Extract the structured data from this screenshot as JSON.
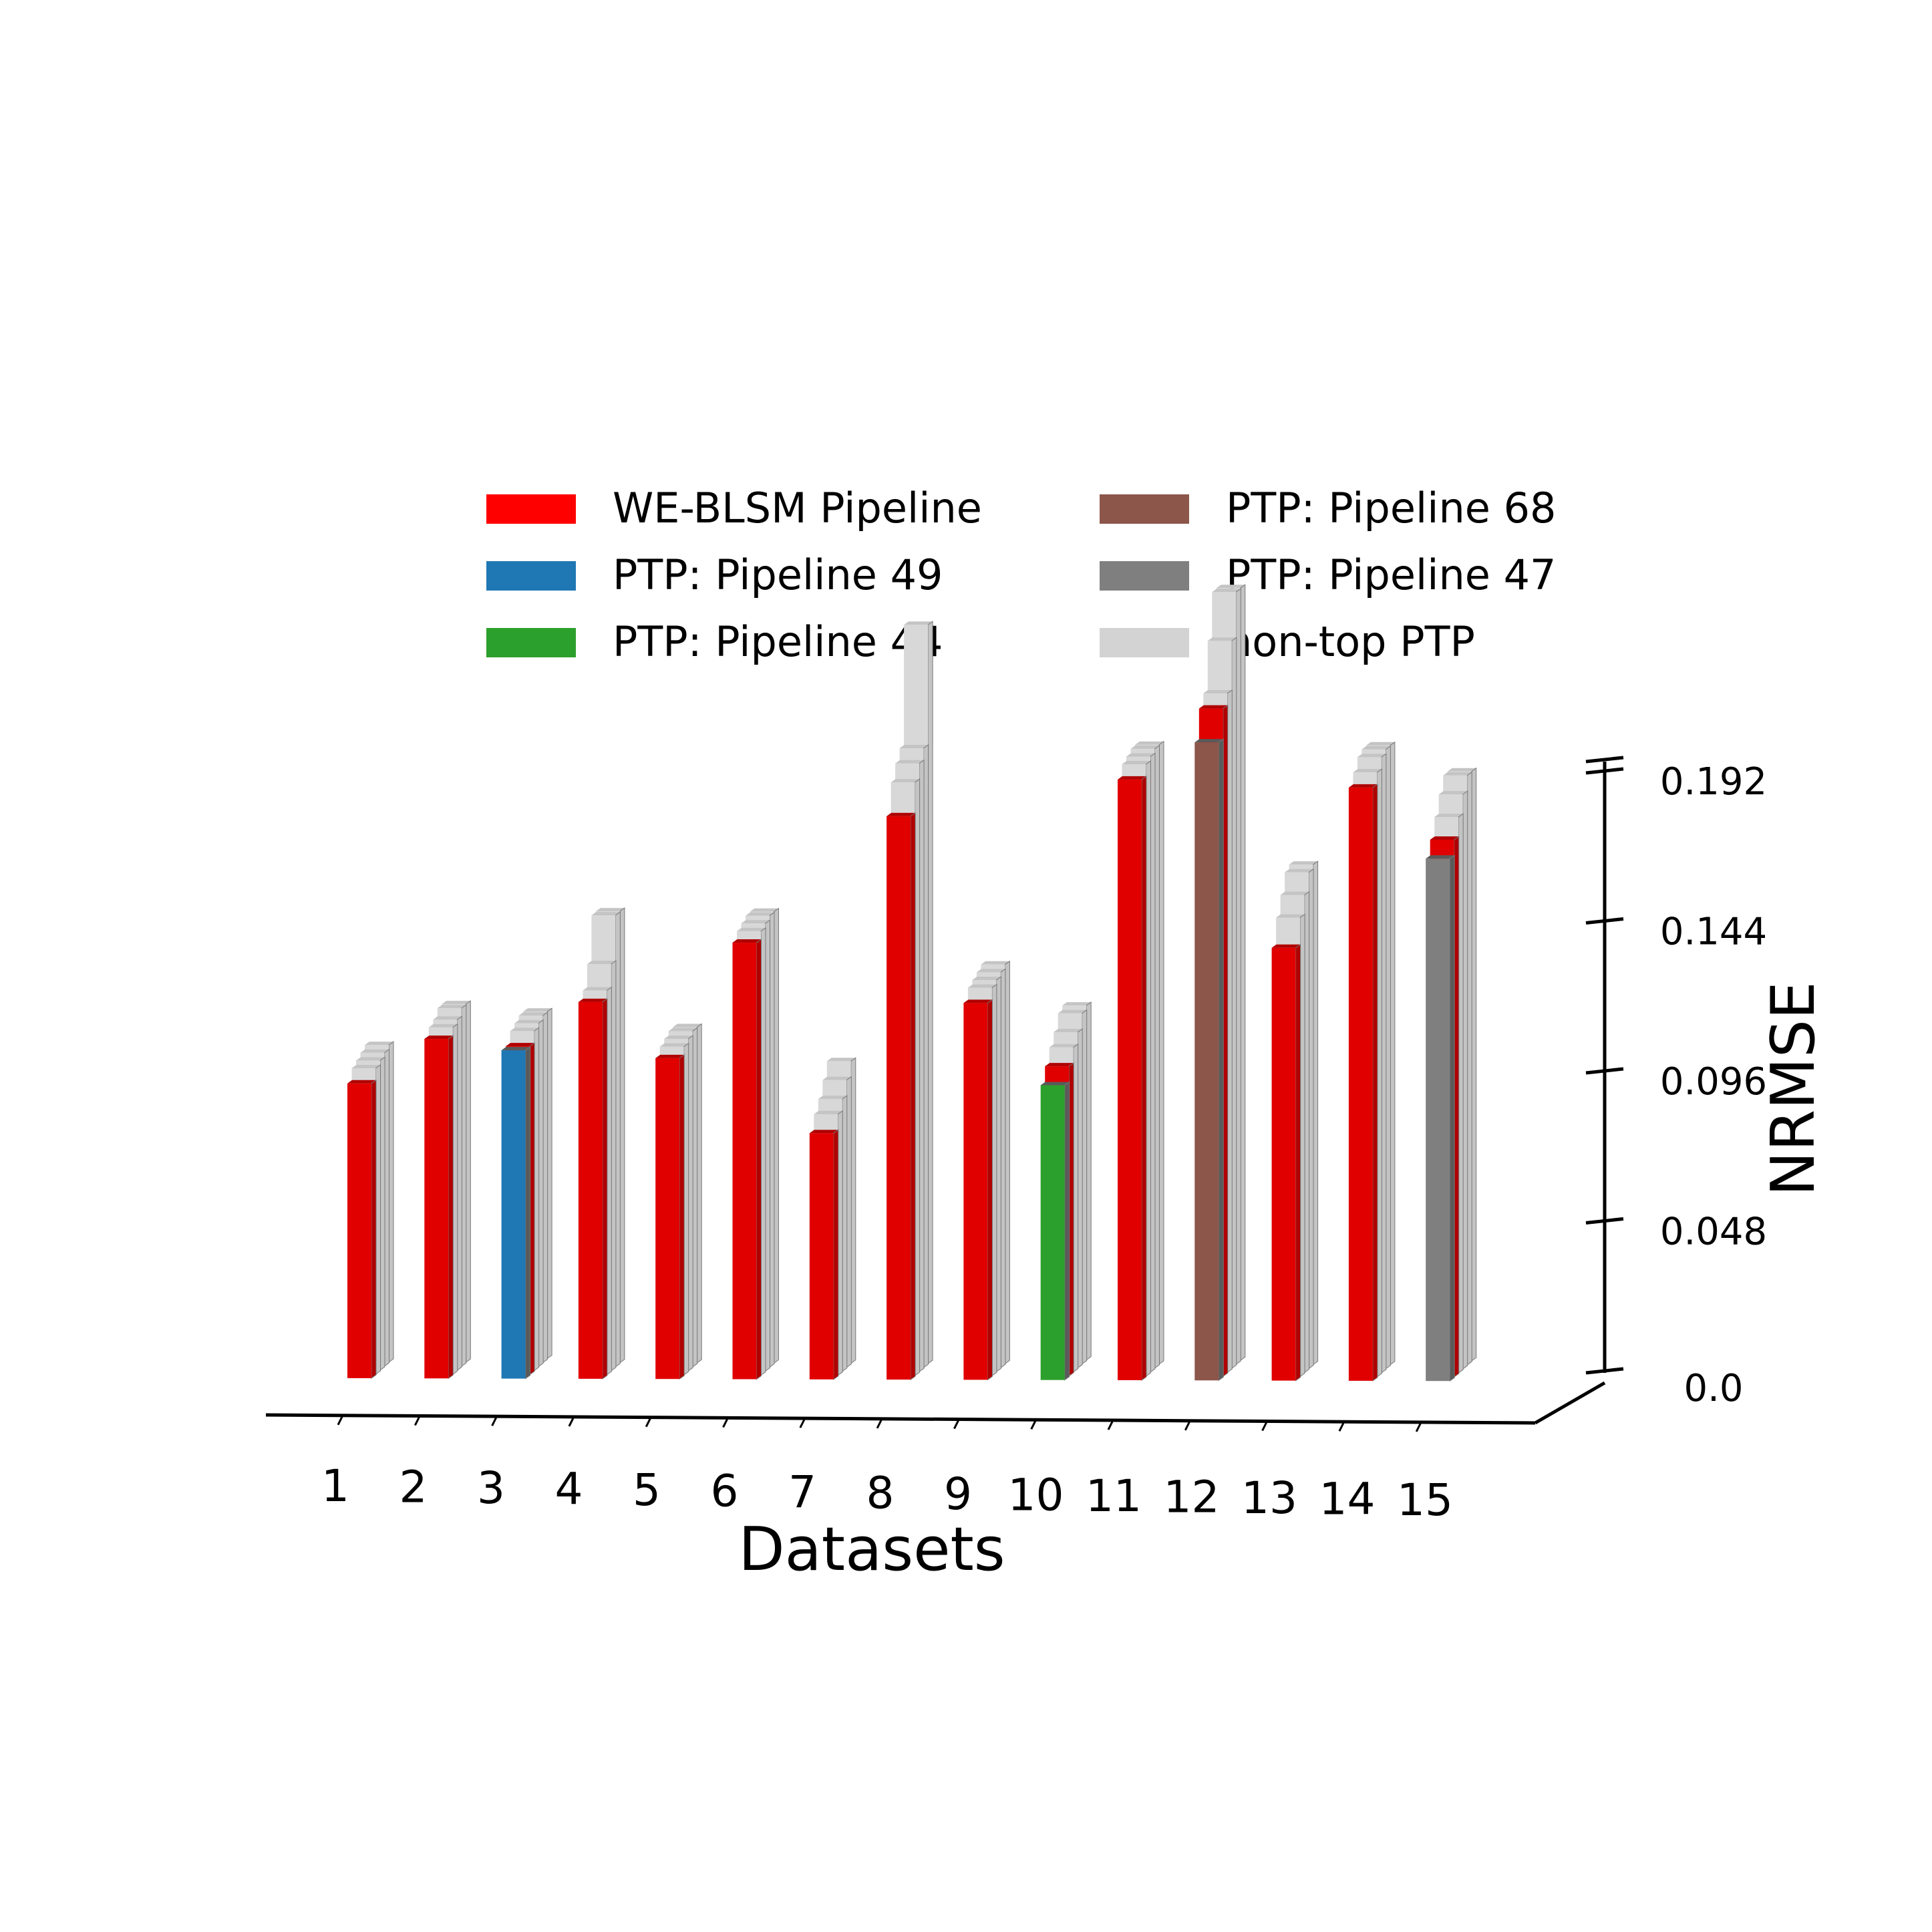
{
  "chart_data": {
    "type": "bar",
    "title": "",
    "xlabel": "Datasets",
    "ylabel": "NRMSE",
    "ylim": [
      0,
      0.2
    ],
    "yticks": [
      0.0,
      0.048,
      0.096,
      0.144,
      0.192
    ],
    "ytick_labels": [
      "0.0",
      "0.048",
      "0.096",
      "0.144",
      "0.192"
    ],
    "categories": [
      "1",
      "2",
      "3",
      "4",
      "5",
      "6",
      "7",
      "8",
      "9",
      "10",
      "11",
      "12",
      "13",
      "14",
      "15"
    ],
    "grid": false,
    "legend_position": "top",
    "legend": [
      {
        "label": "WE-BLSM Pipeline",
        "color": "#ff0000"
      },
      {
        "label": "PTP: Pipeline 49",
        "color": "#1f77b4"
      },
      {
        "label": "PTP: Pipeline 44",
        "color": "#2ca02c"
      },
      {
        "label": "PTP: Pipeline 68",
        "color": "#8c564b"
      },
      {
        "label": "PTP: Pipeline 47",
        "color": "#7f7f7f"
      },
      {
        "label": "non-top PTP",
        "color": "#d3d3d3"
      }
    ],
    "series": [
      {
        "name": "WE-BLSM Pipeline",
        "color": "#ff0000",
        "values": [
          0.079,
          0.091,
          0.088,
          0.101,
          0.086,
          0.117,
          0.066,
          0.151,
          0.101,
          0.083,
          0.161,
          0.179,
          0.116,
          0.159,
          0.144
        ]
      },
      {
        "name": "PTP: Pipeline 49",
        "color": "#1f77b4",
        "category_index": 2,
        "value": 0.088
      },
      {
        "name": "PTP: Pipeline 44",
        "color": "#2ca02c",
        "category_index": 9,
        "value": 0.079
      },
      {
        "name": "PTP: Pipeline 68",
        "color": "#8c564b",
        "category_index": 11,
        "value": 0.171
      },
      {
        "name": "PTP: Pipeline 47",
        "color": "#7f7f7f",
        "category_index": 14,
        "value": 0.14
      },
      {
        "name": "non-top PTP",
        "color": "#d3d3d3",
        "values": [
          [
            0.082,
            0.083,
            0.084,
            0.085
          ],
          [
            0.093,
            0.094,
            0.096,
            0.096
          ],
          [
            0.091,
            0.092,
            0.093,
            0.093
          ],
          [
            0.103,
            0.109,
            0.121,
            0.121
          ],
          [
            0.088,
            0.089,
            0.09,
            0.09
          ],
          [
            0.119,
            0.12,
            0.121,
            0.121
          ],
          [
            0.07,
            0.073,
            0.077,
            0.081
          ],
          [
            0.159,
            0.163,
            0.166,
            0.198
          ],
          [
            0.104,
            0.105,
            0.106,
            0.107
          ],
          [
            0.087,
            0.09,
            0.094,
            0.095
          ],
          [
            0.164,
            0.165,
            0.166,
            0.166
          ],
          [
            0.182,
            0.195,
            0.207,
            0.207
          ],
          [
            0.123,
            0.128,
            0.133,
            0.134
          ],
          [
            0.162,
            0.165,
            0.166,
            0.166
          ],
          [
            0.149,
            0.154,
            0.158,
            0.158
          ]
        ]
      }
    ]
  }
}
